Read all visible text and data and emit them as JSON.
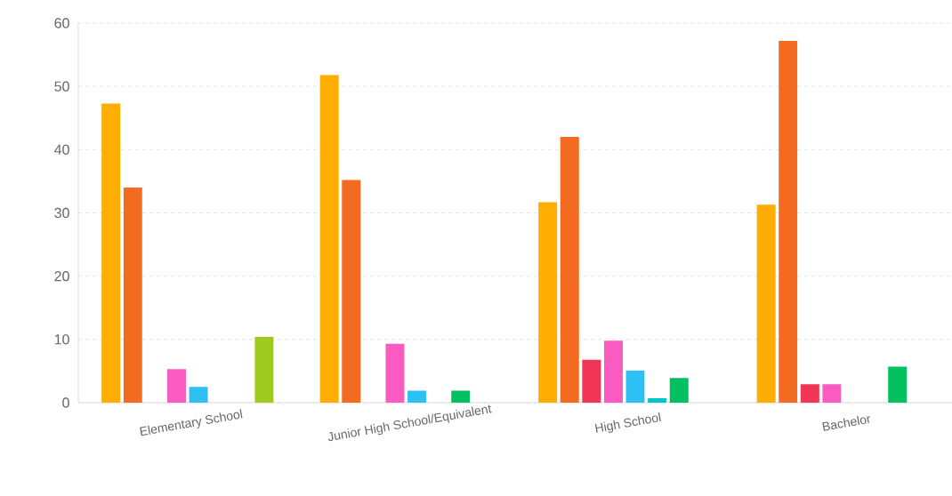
{
  "chart_data": {
    "type": "bar",
    "categories": [
      "Elementary School",
      "Junior High School/Equivalent",
      "High School",
      "Bachelor"
    ],
    "series": [
      {
        "color": "#ffad00",
        "values": [
          47.3,
          51.8,
          31.7,
          31.3
        ]
      },
      {
        "color": "#f26b21",
        "values": [
          34.0,
          35.2,
          42.0,
          57.2
        ]
      },
      {
        "color": "#f23557",
        "values": [
          null,
          null,
          6.8,
          2.9
        ]
      },
      {
        "color": "#f95bc0",
        "values": [
          5.3,
          9.3,
          9.8,
          2.9
        ]
      },
      {
        "color": "#2ebff5",
        "values": [
          2.5,
          1.9,
          5.1,
          null
        ]
      },
      {
        "color": "#00c5c5",
        "values": [
          null,
          null,
          0.7,
          null
        ]
      },
      {
        "color": "#00c060",
        "values": [
          null,
          1.9,
          3.9,
          5.7
        ]
      },
      {
        "color": "#9fcb1e",
        "values": [
          10.4,
          null,
          null,
          null
        ]
      }
    ],
    "ylim": [
      0,
      60
    ],
    "yticks": [
      0,
      10,
      20,
      30,
      40,
      50,
      60
    ],
    "grid": "y"
  }
}
